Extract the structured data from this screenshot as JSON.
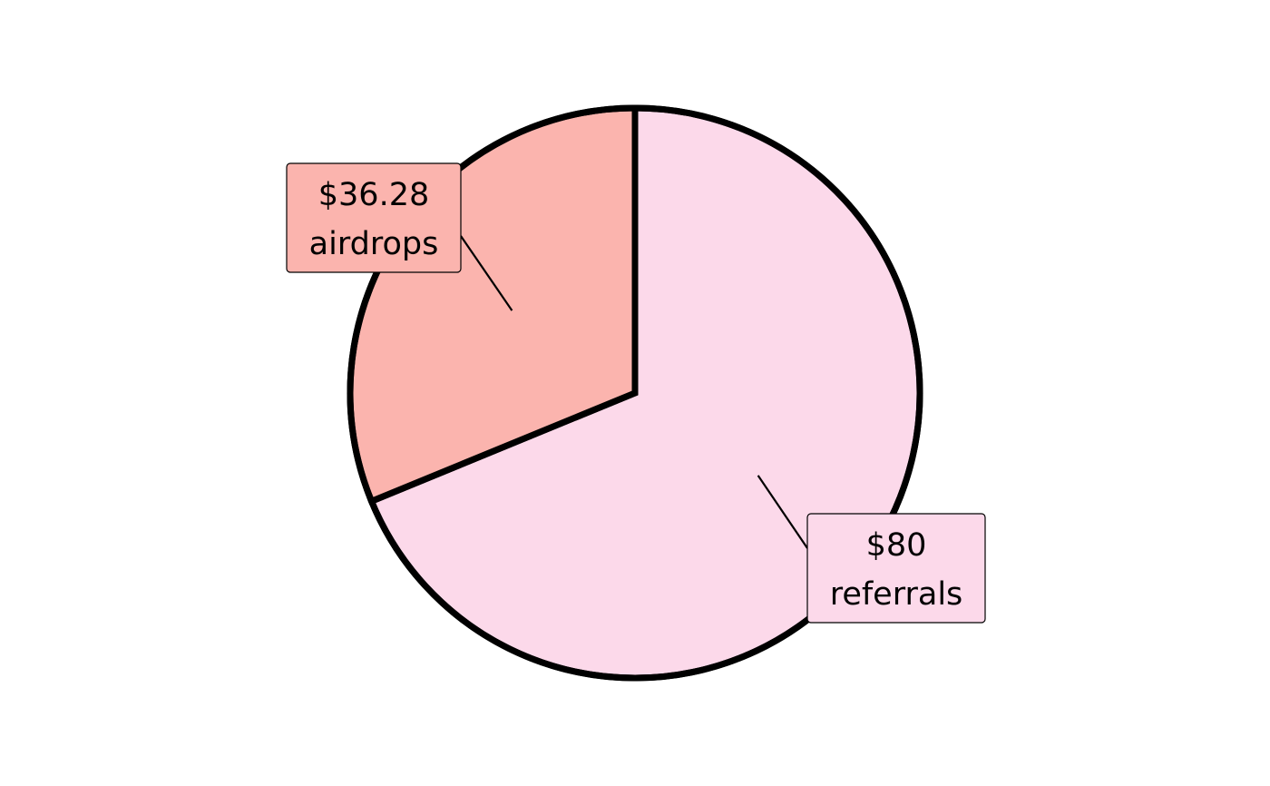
{
  "chart_data": {
    "type": "pie",
    "title": "",
    "start_angle": "12 o'clock",
    "direction": "clockwise",
    "slices": [
      {
        "category": "referrals",
        "value": 80,
        "value_label": "$80",
        "color": "#FCD9EA"
      },
      {
        "category": "airdrops",
        "value": 36.28,
        "value_label": "$36.28",
        "color": "#FBB4AE"
      }
    ],
    "slice_border_color": "#000000",
    "legend": "none"
  }
}
